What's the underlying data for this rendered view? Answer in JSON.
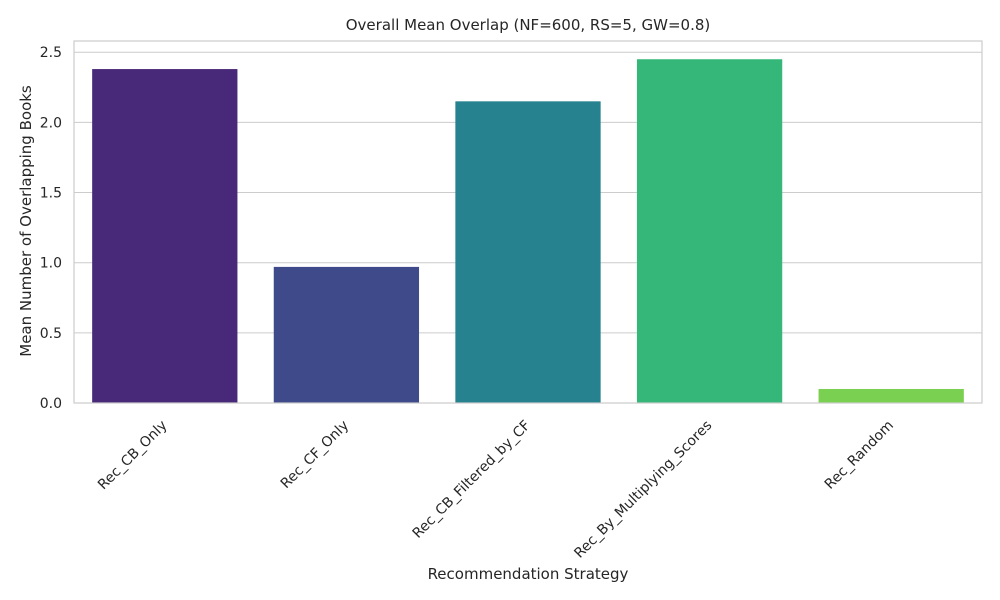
{
  "chart_data": {
    "type": "bar",
    "title": "Overall Mean Overlap (NF=600, RS=5, GW=0.8)",
    "xlabel": "Recommendation Strategy",
    "ylabel": "Mean Number of Overlapping Books",
    "categories": [
      "Rec_CB_Only",
      "Rec_CF_Only",
      "Rec_CB_Filtered_by_CF",
      "Rec_By_Multiplying_Scores",
      "Rec_Random"
    ],
    "values": [
      2.38,
      0.97,
      2.15,
      2.45,
      0.1
    ],
    "colors": [
      "#482878",
      "#3e4a89",
      "#26828e",
      "#35b779",
      "#7ad151"
    ],
    "ylim": [
      0,
      2.58
    ],
    "yticks": [
      0.0,
      0.5,
      1.0,
      1.5,
      2.0,
      2.5
    ],
    "ytick_labels": [
      "0.0",
      "0.5",
      "1.0",
      "1.5",
      "2.0",
      "2.5"
    ],
    "grid": true,
    "legend": false
  }
}
